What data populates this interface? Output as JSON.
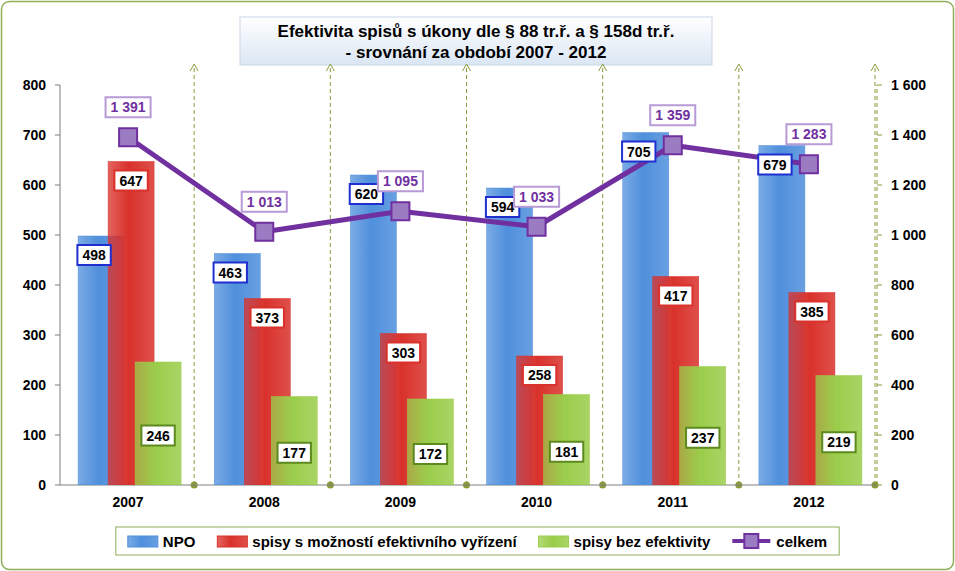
{
  "chart_data": {
    "type": "bar",
    "title": "Efektivita spisů s úkony dle § 88 tr.ř. a § 158d tr.ř.",
    "subtitle": "- srovnání za období 2007 - 2012",
    "categories": [
      "2007",
      "2008",
      "2009",
      "2010",
      "2011",
      "2012"
    ],
    "series": [
      {
        "name": "NPO",
        "color": "#4f8fdc",
        "values": [
          498,
          463,
          620,
          594,
          705,
          679
        ]
      },
      {
        "name": "spisy s možností efektivního vyřízení",
        "color": "#d9312b",
        "values": [
          647,
          373,
          303,
          258,
          417,
          385
        ]
      },
      {
        "name": "spisy bez efektivity",
        "color": "#9acd4a",
        "values": [
          246,
          177,
          172,
          181,
          237,
          219
        ]
      },
      {
        "name": "celkem",
        "type": "line",
        "axis": "y2",
        "color": "#7030a0",
        "marker": "square",
        "line_style": "solid",
        "values": [
          1391,
          1013,
          1095,
          1033,
          1359,
          1283
        ],
        "value_labels": [
          "1 391",
          "1 013",
          "1 095",
          "1 033",
          "1 359",
          "1 283"
        ]
      }
    ],
    "ylim": [
      0,
      800
    ],
    "yticks": [
      0,
      100,
      200,
      300,
      400,
      500,
      600,
      700,
      800
    ],
    "y2lim": [
      0,
      1600
    ],
    "y2ticks": [
      0,
      200,
      400,
      600,
      800,
      {
        "value": 1000,
        "label": "1 000"
      },
      {
        "value": 1200,
        "label": "1 200"
      },
      {
        "value": 1400,
        "label": "1 400"
      },
      {
        "value": 1600,
        "label": "1 600"
      }
    ],
    "grid": false,
    "legend": "bottom",
    "data_labels": true
  }
}
